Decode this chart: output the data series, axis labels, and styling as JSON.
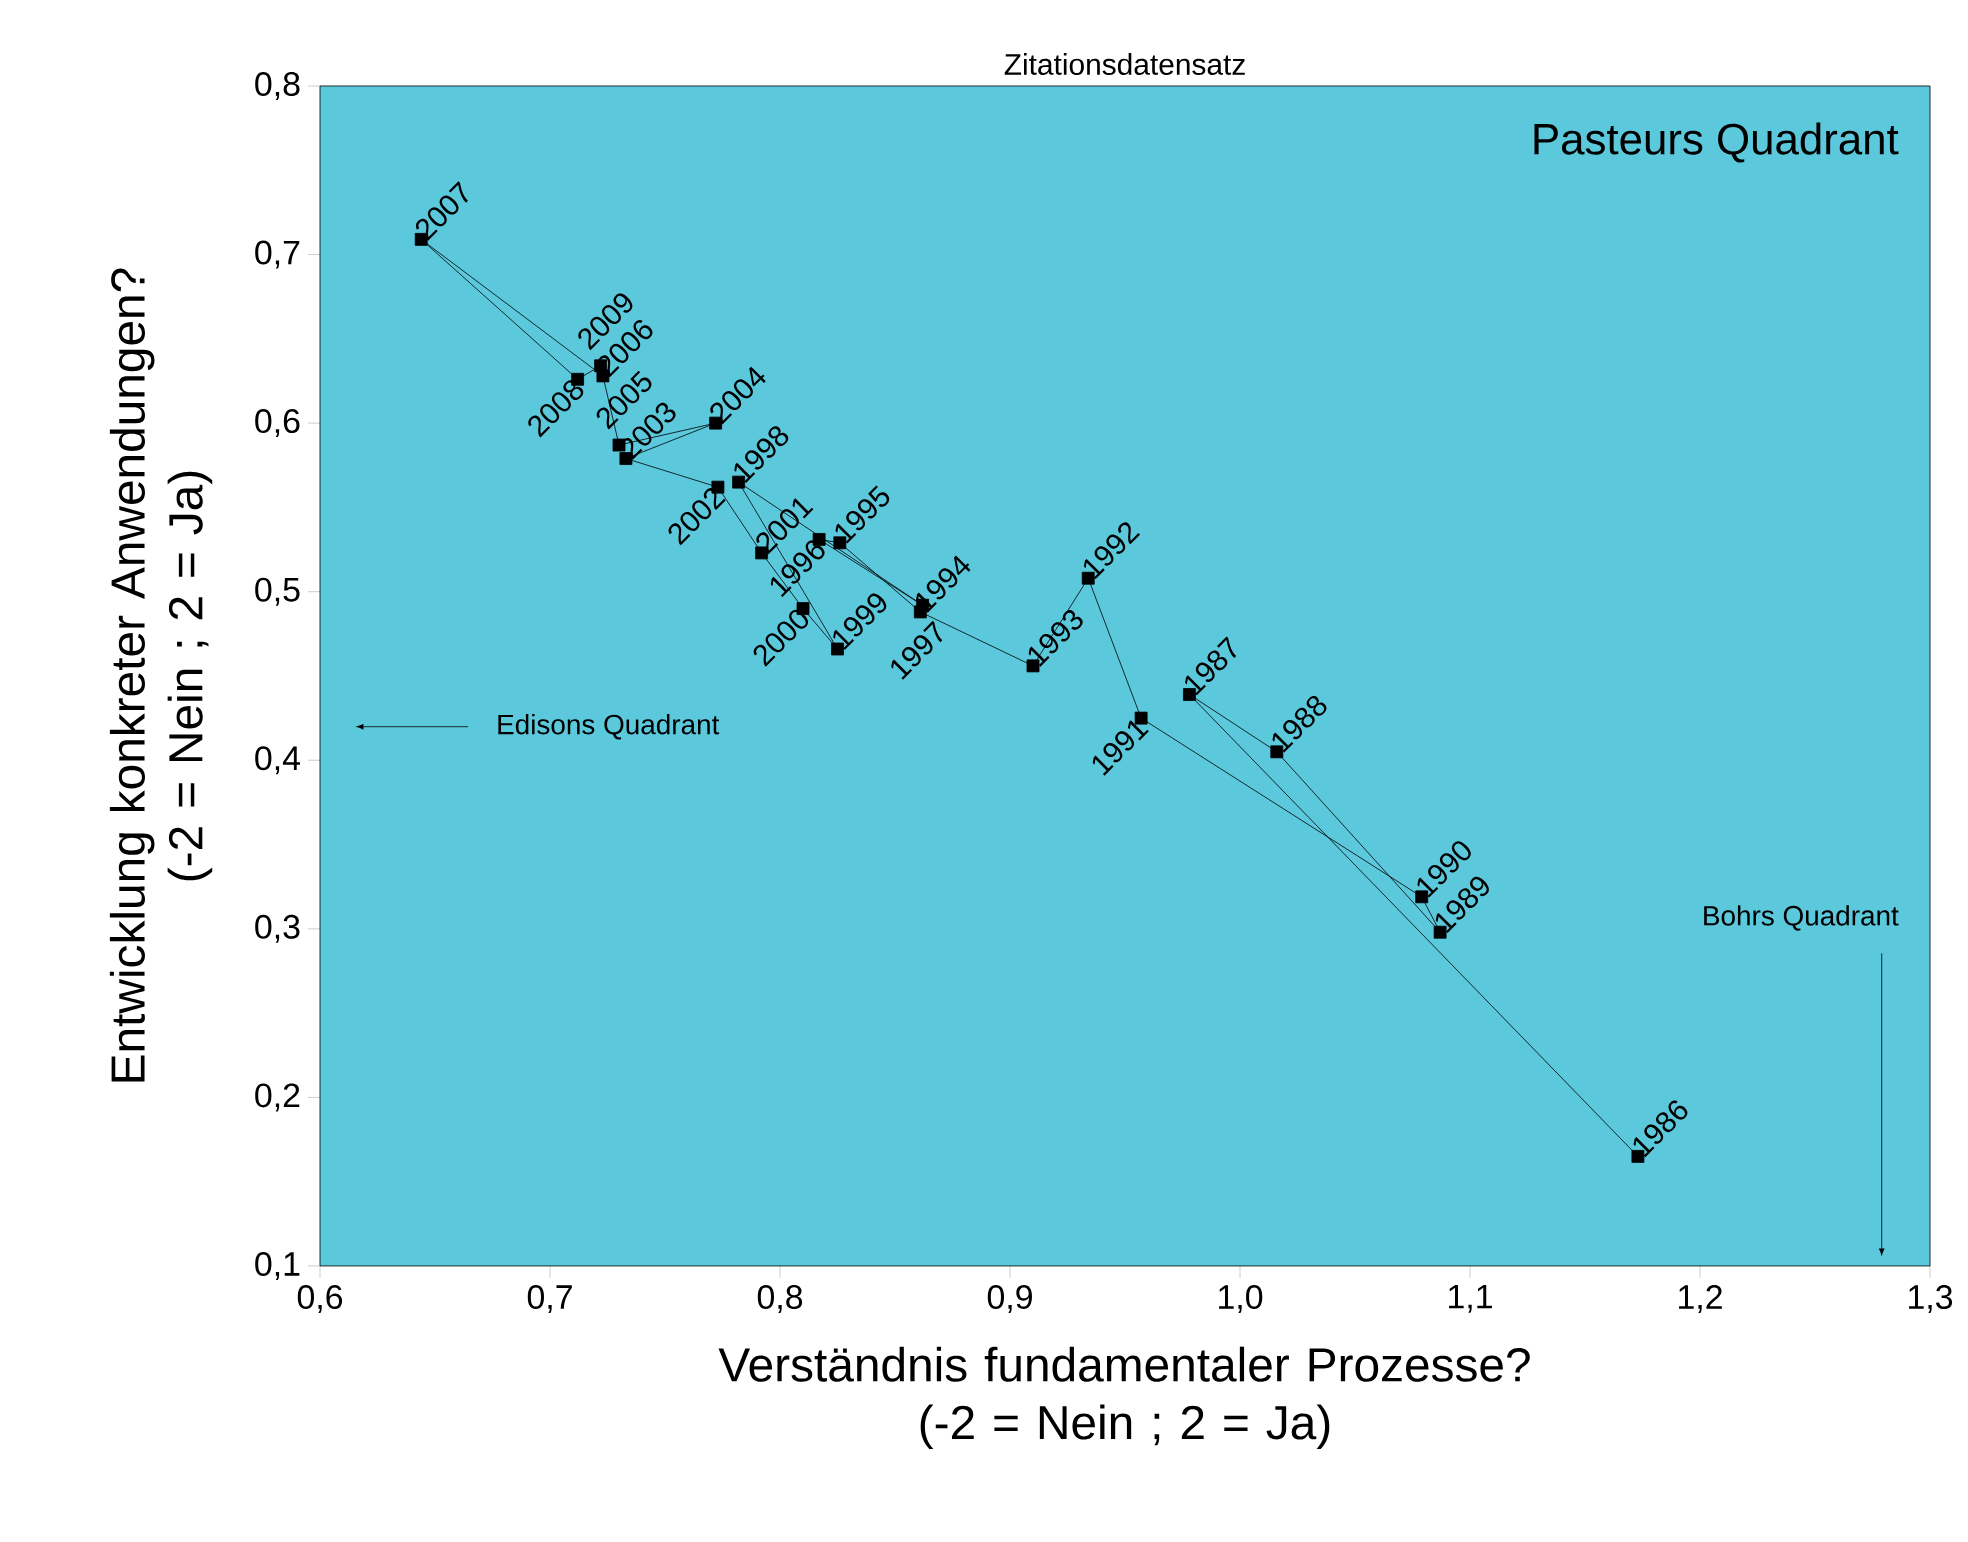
{
  "chart_data": {
    "type": "line",
    "title": "Zitationsdatensatz",
    "xlabel": "Verständnis fundamentaler Prozesse? (-2 = Nein ; 2 = Ja)",
    "ylabel": "Entwicklung konkreter Anwendungen? (-2 = Nein ; 2 = Ja)",
    "x": [
      1.173,
      0.978,
      1.016,
      1.087,
      1.079,
      0.957,
      0.934,
      0.91,
      0.861,
      0.826,
      0.817,
      0.862,
      0.782,
      0.825,
      0.81,
      0.792,
      0.773,
      0.733,
      0.772,
      0.73,
      0.723,
      0.644,
      0.712,
      0.722
    ],
    "values": [
      0.165,
      0.439,
      0.405,
      0.298,
      0.319,
      0.425,
      0.508,
      0.456,
      0.488,
      0.529,
      0.531,
      0.492,
      0.565,
      0.466,
      0.49,
      0.523,
      0.562,
      0.579,
      0.6,
      0.587,
      0.628,
      0.709,
      0.626,
      0.634
    ],
    "color": "#000000",
    "marker": "square",
    "line_style": "solid",
    "xlim": [
      0.6,
      1.3
    ],
    "ylim": [
      0.1,
      0.8
    ],
    "xticks": [
      {
        "value": 0.6,
        "label": "0,6"
      },
      {
        "value": 0.7,
        "label": "0,7"
      },
      {
        "value": 0.8,
        "label": "0,8"
      },
      {
        "value": 0.9,
        "label": "0,9"
      },
      {
        "value": 1.0,
        "label": "1,0"
      },
      {
        "value": 1.1,
        "label": "1,1"
      },
      {
        "value": 1.2,
        "label": "1,2"
      },
      {
        "value": 1.3,
        "label": "1,3"
      }
    ],
    "yticks": [
      {
        "value": 0.1,
        "label": "0,1"
      },
      {
        "value": 0.2,
        "label": "0,2"
      },
      {
        "value": 0.3,
        "label": "0,3"
      },
      {
        "value": 0.4,
        "label": "0,4"
      },
      {
        "value": 0.5,
        "label": "0,5"
      },
      {
        "value": 0.6,
        "label": "0,6"
      },
      {
        "value": 0.7,
        "label": "0,7"
      },
      {
        "value": 0.8,
        "label": "0,8"
      }
    ],
    "annotations": [
      "Pasteurs Quadrant",
      "Edisons Quadrant",
      "Bohrs Quadrant",
      {
        "text": "1986",
        "x": 1.173,
        "y": 0.165
      },
      {
        "text": "1987",
        "x": 0.978,
        "y": 0.439
      },
      {
        "text": "1988",
        "x": 1.016,
        "y": 0.405
      },
      {
        "text": "1989",
        "x": 1.087,
        "y": 0.298
      },
      {
        "text": "1990",
        "x": 1.079,
        "y": 0.319
      },
      {
        "text": "1991",
        "x": 0.957,
        "y": 0.425
      },
      {
        "text": "1992",
        "x": 0.934,
        "y": 0.508
      },
      {
        "text": "1993",
        "x": 0.91,
        "y": 0.456
      },
      {
        "text": "1994",
        "x": 0.861,
        "y": 0.488
      },
      {
        "text": "1995",
        "x": 0.826,
        "y": 0.529
      },
      {
        "text": "1996",
        "x": 0.817,
        "y": 0.531
      },
      {
        "text": "1997",
        "x": 0.862,
        "y": 0.492
      },
      {
        "text": "1998",
        "x": 0.782,
        "y": 0.565
      },
      {
        "text": "1999",
        "x": 0.825,
        "y": 0.466
      },
      {
        "text": "2000",
        "x": 0.81,
        "y": 0.49
      },
      {
        "text": "2001",
        "x": 0.792,
        "y": 0.523
      },
      {
        "text": "2002",
        "x": 0.773,
        "y": 0.562
      },
      {
        "text": "2003",
        "x": 0.733,
        "y": 0.579
      },
      {
        "text": "2004",
        "x": 0.772,
        "y": 0.6
      },
      {
        "text": "2005",
        "x": 0.73,
        "y": 0.587
      },
      {
        "text": "2006",
        "x": 0.723,
        "y": 0.628
      },
      {
        "text": "2007",
        "x": 0.644,
        "y": 0.709
      },
      {
        "text": "2008",
        "x": 0.712,
        "y": 0.626
      },
      {
        "text": "2009",
        "x": 0.722,
        "y": 0.634
      }
    ]
  }
}
